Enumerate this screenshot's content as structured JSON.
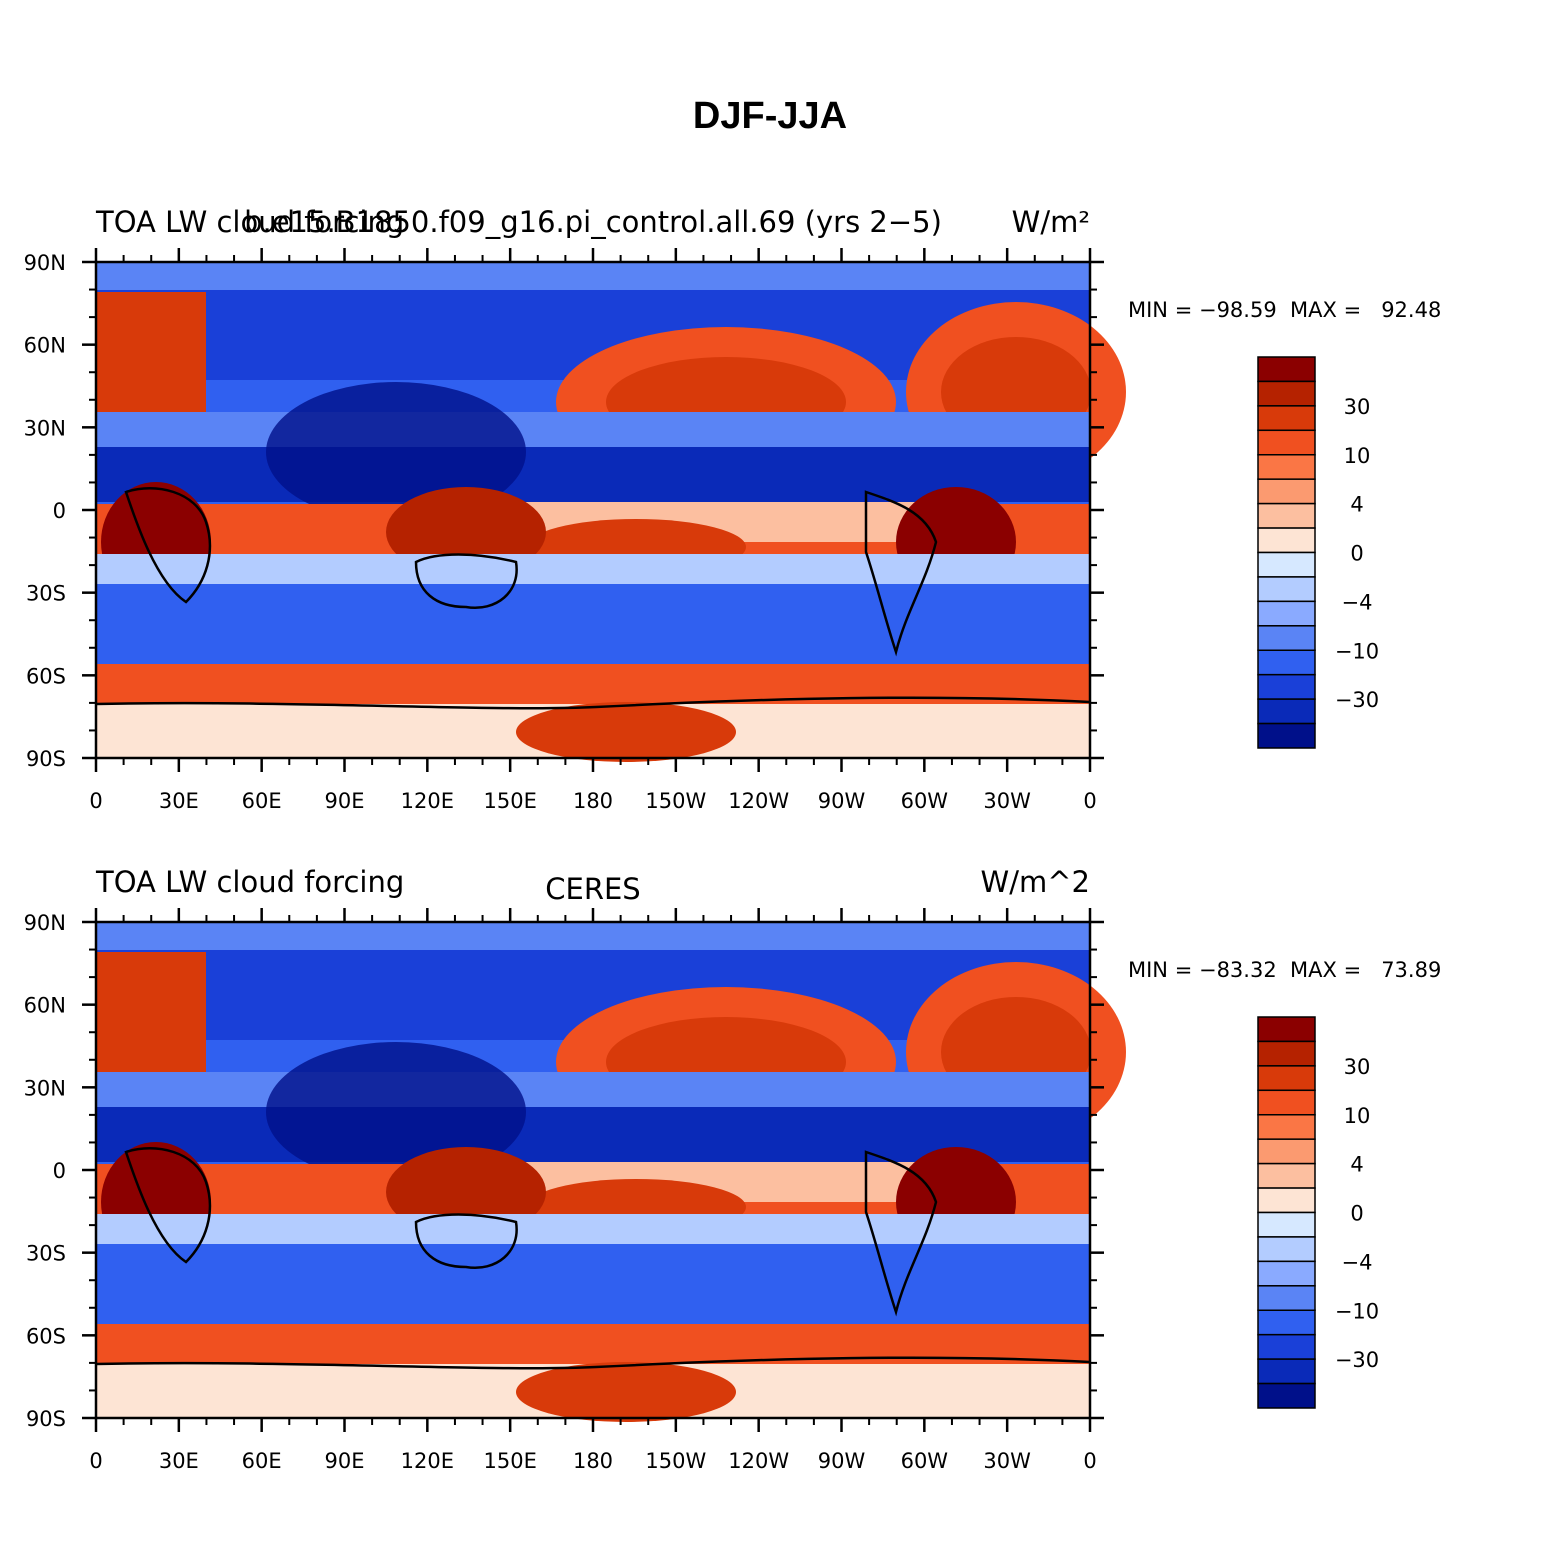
{
  "title": "DJF-JJA",
  "panels": [
    {
      "left_title": "TOA LW cloud forcing",
      "center_title": "b.e15.B1850.f09_g16.pi_control.all.69 (yrs 2−5)",
      "right_title": "W/m²",
      "stats": "MIN = −98.59  MAX =   92.48"
    },
    {
      "left_title": "TOA LW cloud forcing",
      "center_title": "CERES",
      "right_title": "W/m^2",
      "stats": "MIN = −83.32  MAX =   73.89"
    }
  ],
  "lat_labels": [
    "90N",
    "60N",
    "30N",
    "0",
    "30S",
    "60S",
    "90S"
  ],
  "lon_labels": [
    "0",
    "30E",
    "60E",
    "90E",
    "120E",
    "150E",
    "180",
    "150W",
    "120W",
    "90W",
    "60W",
    "30W",
    "0"
  ],
  "colorbar_labels": [
    "30",
    "10",
    "4",
    "0",
    "−4",
    "−10",
    "−30"
  ],
  "colorbar_colors": [
    "#8b0000",
    "#b52200",
    "#d83a0a",
    "#f05020",
    "#fa7645",
    "#fb9a70",
    "#fcbfa0",
    "#fde4d4",
    "#d6e8ff",
    "#b3ccff",
    "#8aaaff",
    "#5a84f5",
    "#3060f0",
    "#1a40d8",
    "#0a2ab8",
    "#00108a"
  ]
}
